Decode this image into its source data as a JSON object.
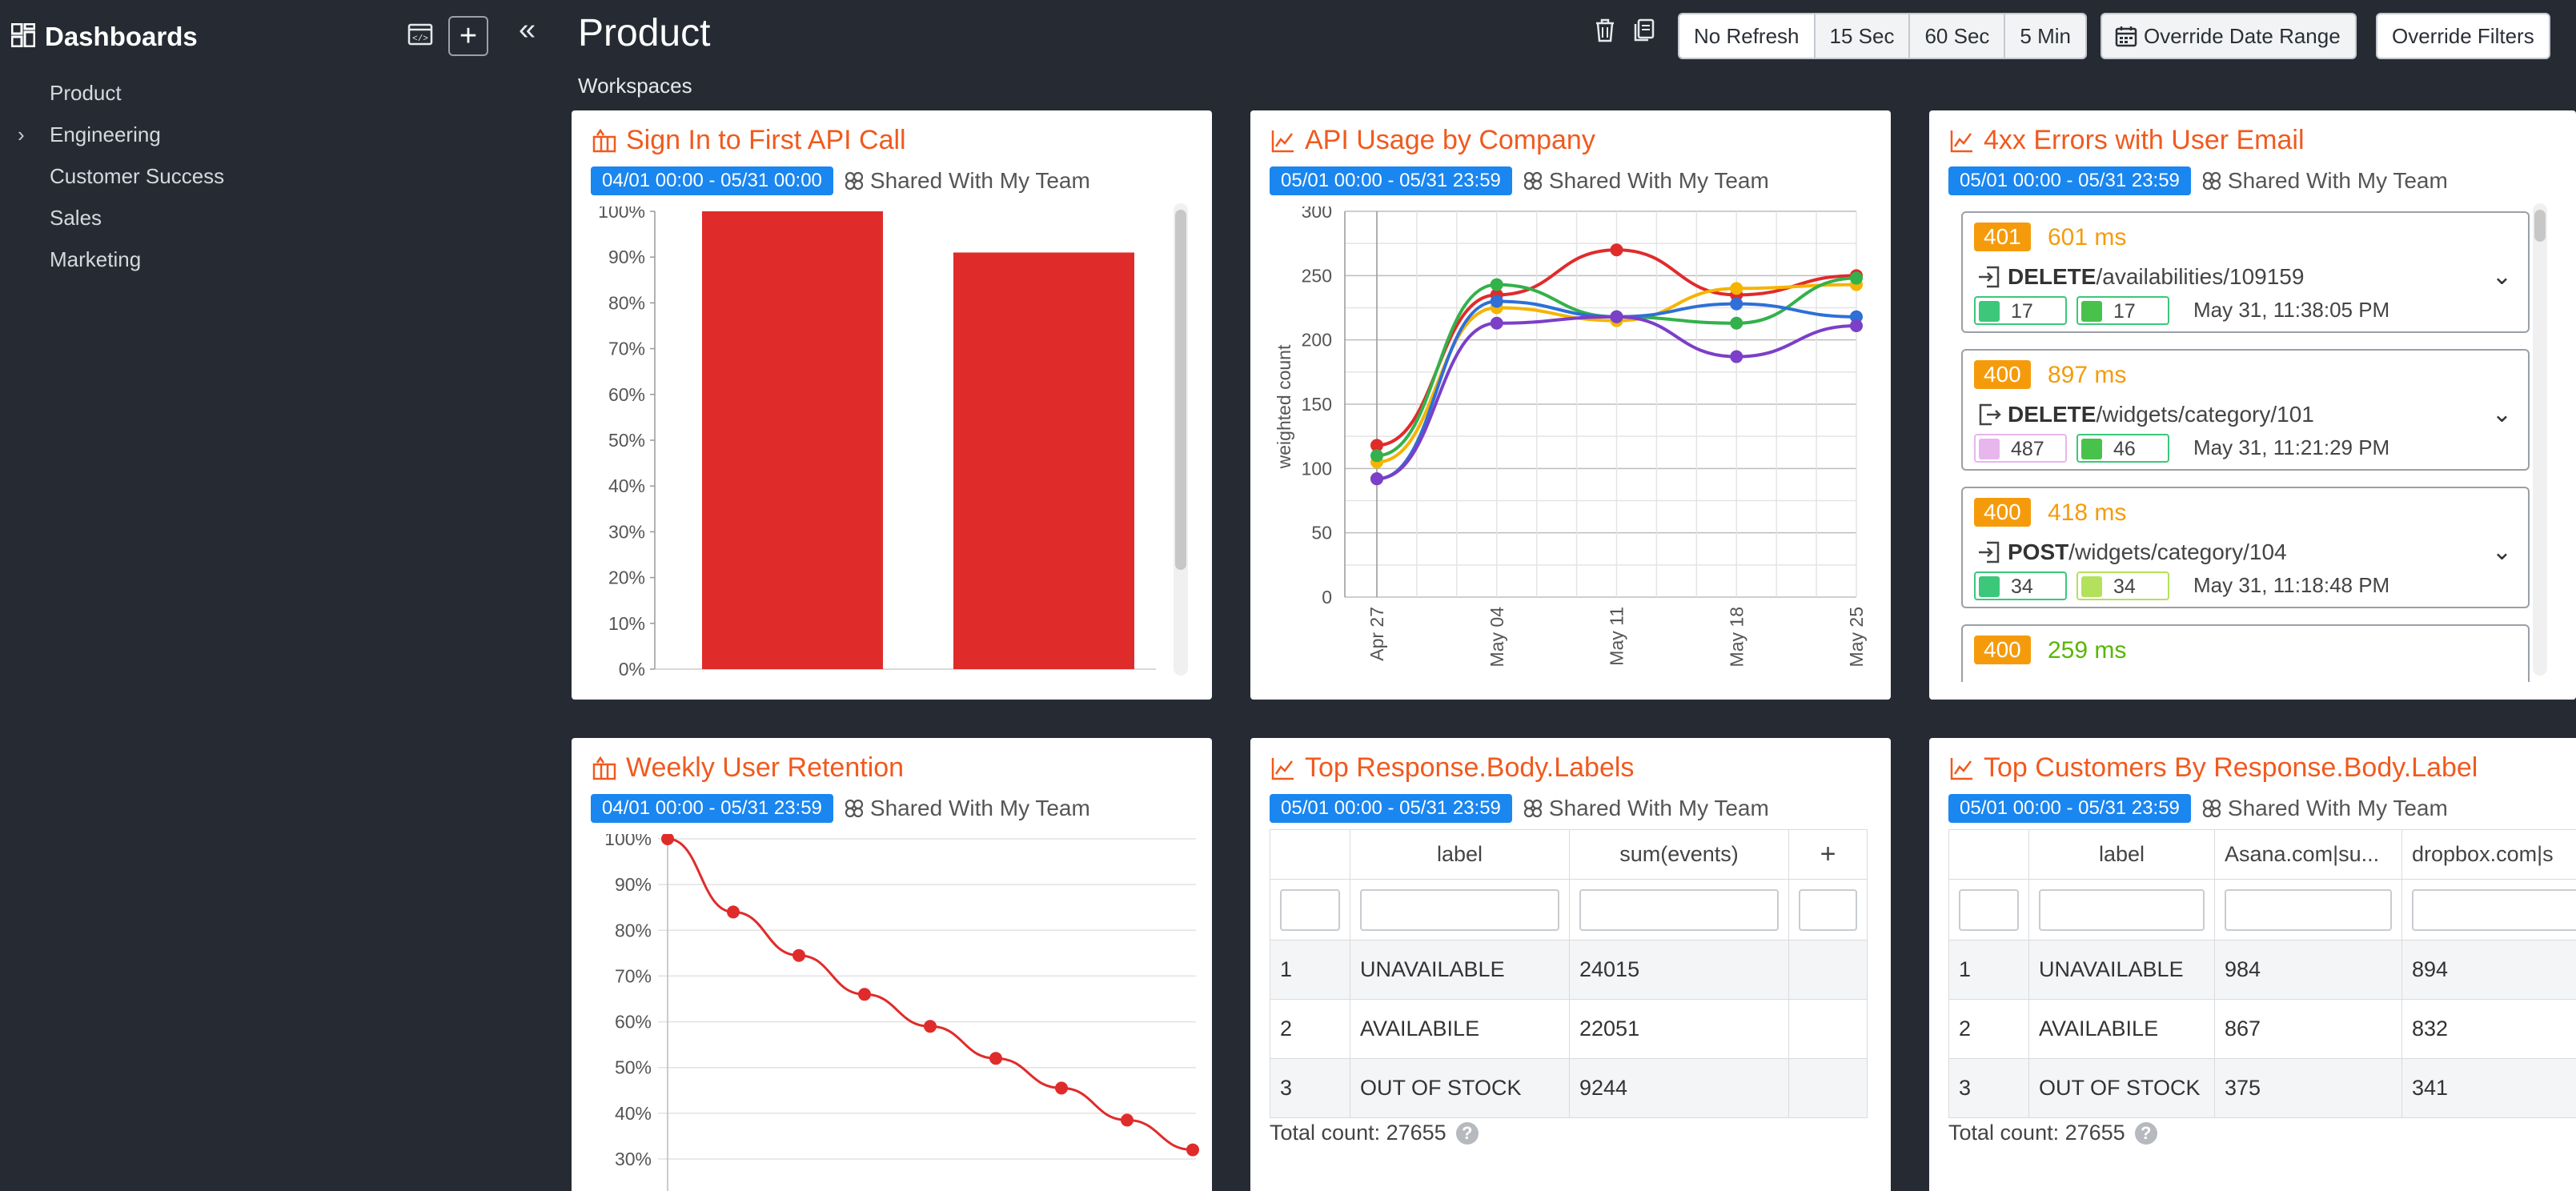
{
  "sidebar": {
    "title": "Dashboards",
    "items": [
      {
        "label": "Product",
        "expandable": false
      },
      {
        "label": "Engineering",
        "expandable": true
      },
      {
        "label": "Customer Success",
        "expandable": false
      },
      {
        "label": "Sales",
        "expandable": false
      },
      {
        "label": "Marketing",
        "expandable": false
      }
    ]
  },
  "header": {
    "title": "Product",
    "subtitle": "Workspaces",
    "refresh_options": [
      "No Refresh",
      "15 Sec",
      "60 Sec",
      "5 Min"
    ],
    "override_date_label": "Override Date Range",
    "override_filters_label": "Override Filters"
  },
  "cards": {
    "signin": {
      "title": "Sign In to First API Call",
      "date_range": "04/01 00:00 - 05/31 00:00",
      "shared": "Shared With My Team"
    },
    "usage": {
      "title": "API Usage by Company",
      "date_range": "05/01 00:00 - 05/31 23:59",
      "shared": "Shared With My Team"
    },
    "errors": {
      "title": "4xx Errors with User Email",
      "date_range": "05/01 00:00 - 05/31 23:59",
      "shared": "Shared With My Team",
      "items": [
        {
          "code": "401",
          "ms": "601 ms",
          "method": "DELETE",
          "path": "/availabilities/109159",
          "a": "17",
          "b": "17",
          "time": "May 31, 11:38:05 PM"
        },
        {
          "code": "400",
          "ms": "897 ms",
          "method": "DELETE",
          "path": "/widgets/category/101",
          "a": "487",
          "b": "46",
          "time": "May 31, 11:21:29 PM"
        },
        {
          "code": "400",
          "ms": "418 ms",
          "method": "POST",
          "path": "/widgets/category/104",
          "a": "34",
          "b": "34",
          "time": "May 31, 11:18:48 PM"
        },
        {
          "code": "400",
          "ms": "259 ms"
        }
      ]
    },
    "retention": {
      "title": "Weekly User Retention",
      "date_range": "04/01 00:00 - 05/31 23:59",
      "shared": "Shared With My Team"
    },
    "labels": {
      "title": "Top Response.Body.Labels",
      "date_range": "05/01 00:00 - 05/31 23:59",
      "shared": "Shared With My Team",
      "columns": [
        "label",
        "sum(events)",
        "+"
      ],
      "rows": [
        [
          "1",
          "UNAVAILABLE",
          "24015"
        ],
        [
          "2",
          "AVAILABILE",
          "22051"
        ],
        [
          "3",
          "OUT OF STOCK",
          "9244"
        ]
      ],
      "total": "Total count: 27655"
    },
    "customers": {
      "title": "Top Customers By Response.Body.Label",
      "date_range": "05/01 00:00 - 05/31 23:59",
      "shared": "Shared With My Team",
      "columns": [
        "label",
        "Asana.com|su...",
        "dropbox.com|s"
      ],
      "rows": [
        [
          "1",
          "UNAVAILABLE",
          "984",
          "894"
        ],
        [
          "2",
          "AVAILABILE",
          "867",
          "832"
        ],
        [
          "3",
          "OUT OF STOCK",
          "375",
          "341"
        ]
      ],
      "total": "Total count: 27655"
    }
  },
  "chart_data": [
    {
      "type": "bar",
      "title": "Sign In to First API Call",
      "categories": [
        "",
        ""
      ],
      "values": [
        100,
        91
      ],
      "yticks": [
        "0%",
        "10%",
        "20%",
        "30%",
        "40%",
        "50%",
        "60%",
        "70%",
        "80%",
        "90%",
        "100%"
      ],
      "ylim": [
        0,
        100
      ],
      "color": "#e02b2b"
    },
    {
      "type": "line",
      "title": "API Usage by Company",
      "ylabel": "weighted count",
      "x": [
        "Apr 27",
        "May 04",
        "May 11",
        "May 18",
        "May 25"
      ],
      "yticks": [
        "0",
        "50",
        "100",
        "150",
        "200",
        "250",
        "300"
      ],
      "ylim": [
        0,
        300
      ],
      "series": [
        {
          "color": "#e02b2b",
          "values": [
            118,
            235,
            270,
            235,
            250
          ]
        },
        {
          "color": "#f5b400",
          "values": [
            105,
            225,
            215,
            240,
            243
          ]
        },
        {
          "color": "#33b14b",
          "values": [
            110,
            243,
            218,
            213,
            248
          ]
        },
        {
          "color": "#2f6fd6",
          "values": [
            92,
            230,
            218,
            228,
            218
          ]
        },
        {
          "color": "#7b3fc8",
          "values": [
            92,
            213,
            218,
            187,
            211
          ]
        }
      ]
    },
    {
      "type": "line",
      "title": "Weekly User Retention",
      "yticks": [
        "30%",
        "40%",
        "50%",
        "60%",
        "70%",
        "80%",
        "90%",
        "100%"
      ],
      "ylim": [
        30,
        100
      ],
      "values": [
        100,
        84,
        74.5,
        66,
        59,
        52,
        45.5,
        38.5,
        32
      ],
      "color": "#e02b2b"
    }
  ]
}
